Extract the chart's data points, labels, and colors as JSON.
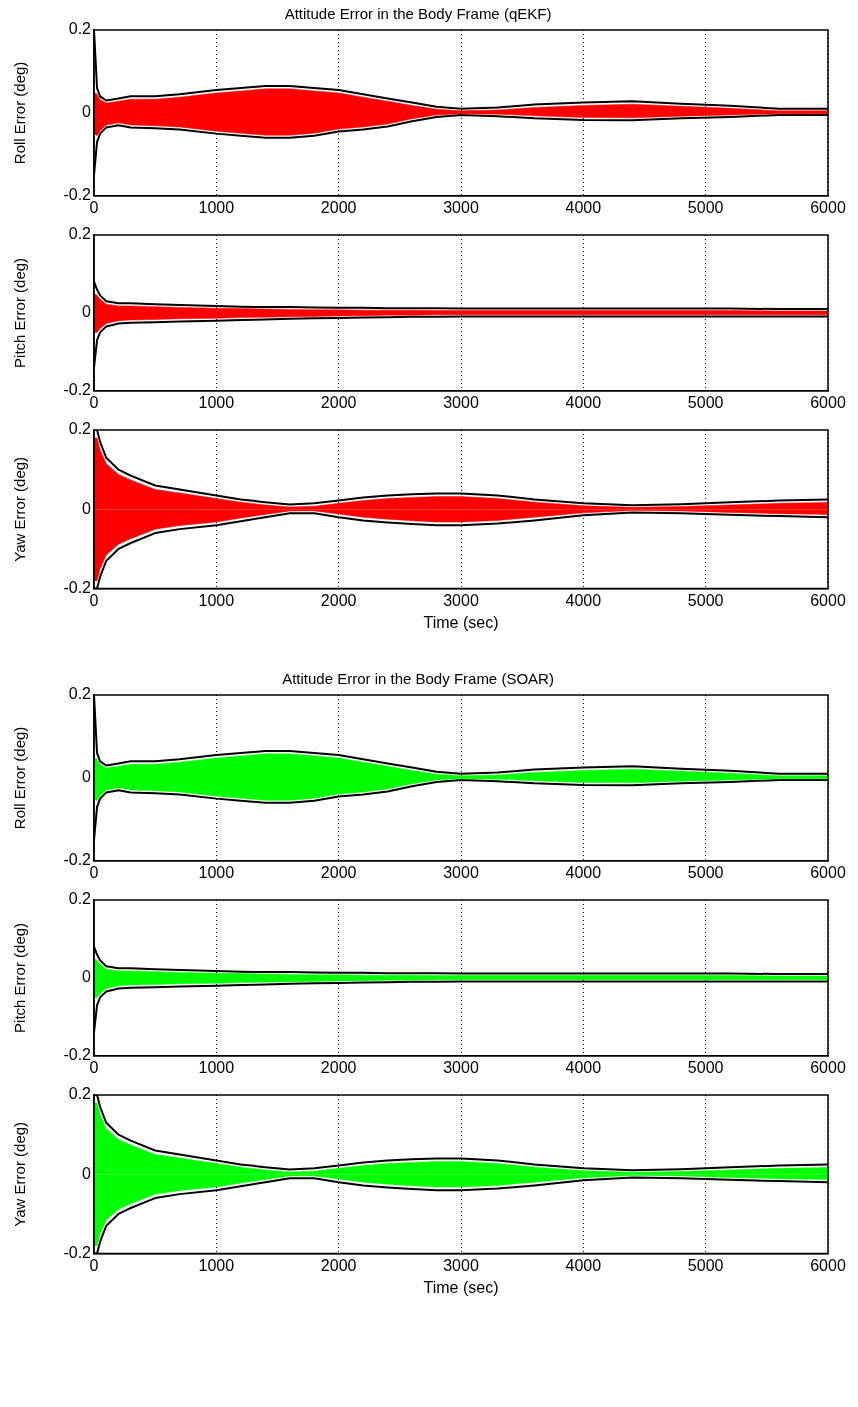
{
  "chart_data": [
    {
      "type": "area",
      "title": "Attitude Error in the Body Frame (qEKF)",
      "ylabel": "Roll Error (deg)",
      "x": [
        0,
        25,
        50,
        100,
        200,
        300,
        500,
        700,
        1000,
        1200,
        1400,
        1600,
        1800,
        2000,
        2200,
        2400,
        2600,
        2800,
        3000,
        3300,
        3600,
        4000,
        4400,
        4800,
        5200,
        5600,
        6000
      ],
      "xlim": [
        0,
        6000
      ],
      "xticks": [
        0,
        1000,
        2000,
        3000,
        4000,
        5000,
        6000
      ],
      "ylim": [
        -0.2,
        0.2
      ],
      "yticks": [
        -0.2,
        0,
        0.2
      ],
      "grid": "x",
      "legend": false,
      "marker": "none",
      "series": [
        {
          "color": "#ff0000",
          "values": [
            0.05,
            0.045,
            0.032,
            0.024,
            0.028,
            0.033,
            0.033,
            0.038,
            0.048,
            0.053,
            0.058,
            0.058,
            0.053,
            0.048,
            0.038,
            0.028,
            0.018,
            0.009,
            0.005,
            0.007,
            0.013,
            0.018,
            0.021,
            0.016,
            0.011,
            0.005,
            0.005
          ]
        },
        {
          "color": "#ff0000",
          "values": [
            -0.05,
            -0.055,
            -0.043,
            -0.029,
            -0.024,
            -0.029,
            -0.031,
            -0.034,
            -0.044,
            -0.049,
            -0.054,
            -0.054,
            -0.049,
            -0.039,
            -0.034,
            -0.027,
            -0.014,
            -0.005,
            -0.002,
            -0.003,
            -0.007,
            -0.011,
            -0.012,
            -0.008,
            -0.005,
            -0.002,
            -0.002
          ]
        },
        {
          "type": "line",
          "color": "#000000",
          "values": [
            0.2,
            0.06,
            0.04,
            0.03,
            0.035,
            0.04,
            0.04,
            0.045,
            0.055,
            0.06,
            0.065,
            0.065,
            0.06,
            0.055,
            0.045,
            0.035,
            0.025,
            0.015,
            0.01,
            0.013,
            0.02,
            0.025,
            0.028,
            0.022,
            0.017,
            0.01,
            0.01
          ]
        },
        {
          "type": "line",
          "color": "#000000",
          "values": [
            -0.15,
            -0.07,
            -0.05,
            -0.035,
            -0.03,
            -0.035,
            -0.037,
            -0.04,
            -0.05,
            -0.055,
            -0.06,
            -0.06,
            -0.055,
            -0.045,
            -0.04,
            -0.033,
            -0.02,
            -0.01,
            -0.005,
            -0.008,
            -0.013,
            -0.017,
            -0.018,
            -0.013,
            -0.01,
            -0.005,
            -0.005
          ]
        }
      ]
    },
    {
      "type": "area",
      "ylabel": "Pitch Error (deg)",
      "x": [
        0,
        25,
        50,
        100,
        200,
        300,
        500,
        700,
        1000,
        1200,
        1400,
        1600,
        1800,
        2000,
        2200,
        2400,
        2600,
        2800,
        3000,
        3300,
        3600,
        4000,
        4400,
        4800,
        5200,
        5600,
        6000
      ],
      "xlim": [
        0,
        6000
      ],
      "xticks": [
        0,
        1000,
        2000,
        3000,
        4000,
        5000,
        6000
      ],
      "ylim": [
        -0.2,
        0.2
      ],
      "yticks": [
        -0.2,
        0,
        0.2
      ],
      "grid": "x",
      "legend": false,
      "marker": "none",
      "series": [
        {
          "color": "#ff0000",
          "values": [
            0.05,
            0.045,
            0.035,
            0.022,
            0.018,
            0.018,
            0.016,
            0.014,
            0.012,
            0.011,
            0.01,
            0.009,
            0.008,
            0.008,
            0.007,
            0.007,
            0.007,
            0.006,
            0.006,
            0.006,
            0.006,
            0.006,
            0.006,
            0.006,
            0.006,
            0.005,
            0.005
          ]
        },
        {
          "color": "#ff0000",
          "values": [
            -0.05,
            -0.05,
            -0.04,
            -0.027,
            -0.02,
            -0.018,
            -0.017,
            -0.015,
            -0.014,
            -0.012,
            -0.011,
            -0.01,
            -0.009,
            -0.008,
            -0.007,
            -0.006,
            -0.006,
            -0.005,
            -0.005,
            -0.005,
            -0.005,
            -0.005,
            -0.005,
            -0.005,
            -0.005,
            -0.005,
            -0.005
          ]
        },
        {
          "type": "line",
          "color": "#000000",
          "values": [
            0.08,
            0.06,
            0.045,
            0.03,
            0.025,
            0.025,
            0.022,
            0.02,
            0.018,
            0.016,
            0.015,
            0.015,
            0.014,
            0.013,
            0.013,
            0.012,
            0.012,
            0.012,
            0.011,
            0.011,
            0.011,
            0.011,
            0.011,
            0.011,
            0.011,
            0.01,
            0.01
          ]
        },
        {
          "type": "line",
          "color": "#000000",
          "values": [
            -0.14,
            -0.07,
            -0.05,
            -0.035,
            -0.027,
            -0.025,
            -0.024,
            -0.022,
            -0.02,
            -0.018,
            -0.017,
            -0.015,
            -0.014,
            -0.013,
            -0.012,
            -0.011,
            -0.01,
            -0.01,
            -0.009,
            -0.009,
            -0.009,
            -0.009,
            -0.009,
            -0.009,
            -0.009,
            -0.009,
            -0.009
          ]
        }
      ]
    },
    {
      "type": "area",
      "ylabel": "Yaw Error (deg)",
      "xlabel": "Time (sec)",
      "x": [
        0,
        25,
        50,
        100,
        200,
        300,
        500,
        700,
        1000,
        1200,
        1400,
        1600,
        1800,
        2000,
        2200,
        2400,
        2600,
        2800,
        3000,
        3300,
        3600,
        4000,
        4400,
        4800,
        5200,
        5600,
        6000
      ],
      "xlim": [
        0,
        6000
      ],
      "xticks": [
        0,
        1000,
        2000,
        3000,
        4000,
        5000,
        6000
      ],
      "ylim": [
        -0.2,
        0.2
      ],
      "yticks": [
        -0.2,
        0,
        0.2
      ],
      "grid": "x",
      "legend": false,
      "marker": "none",
      "series": [
        {
          "color": "#ff0000",
          "values": [
            0.18,
            0.18,
            0.15,
            0.115,
            0.088,
            0.074,
            0.05,
            0.041,
            0.027,
            0.018,
            0.011,
            0.006,
            0.008,
            0.015,
            0.022,
            0.027,
            0.03,
            0.032,
            0.032,
            0.027,
            0.018,
            0.009,
            0.005,
            0.007,
            0.011,
            0.015,
            0.017
          ]
        },
        {
          "color": "#ff0000",
          "values": [
            -0.18,
            -0.18,
            -0.15,
            -0.115,
            -0.088,
            -0.074,
            -0.05,
            -0.041,
            -0.032,
            -0.022,
            -0.013,
            -0.004,
            -0.004,
            -0.012,
            -0.02,
            -0.025,
            -0.029,
            -0.032,
            -0.032,
            -0.028,
            -0.02,
            -0.009,
            -0.003,
            -0.004,
            -0.008,
            -0.011,
            -0.013
          ]
        },
        {
          "type": "line",
          "color": "#000000",
          "values": [
            0.2,
            0.2,
            0.17,
            0.13,
            0.1,
            0.085,
            0.06,
            0.05,
            0.035,
            0.025,
            0.018,
            0.012,
            0.015,
            0.022,
            0.03,
            0.035,
            0.038,
            0.04,
            0.04,
            0.035,
            0.025,
            0.015,
            0.01,
            0.013,
            0.018,
            0.022,
            0.025
          ]
        },
        {
          "type": "line",
          "color": "#000000",
          "values": [
            -0.2,
            -0.2,
            -0.17,
            -0.13,
            -0.1,
            -0.085,
            -0.06,
            -0.05,
            -0.04,
            -0.03,
            -0.02,
            -0.01,
            -0.01,
            -0.02,
            -0.028,
            -0.033,
            -0.037,
            -0.04,
            -0.04,
            -0.036,
            -0.028,
            -0.015,
            -0.008,
            -0.01,
            -0.014,
            -0.017,
            -0.02
          ]
        }
      ]
    },
    {
      "type": "area",
      "title": "Attitude Error in the Body Frame (SOAR)",
      "ylabel": "Roll Error (deg)",
      "x": [
        0,
        25,
        50,
        100,
        200,
        300,
        500,
        700,
        1000,
        1200,
        1400,
        1600,
        1800,
        2000,
        2200,
        2400,
        2600,
        2800,
        3000,
        3300,
        3600,
        4000,
        4400,
        4800,
        5200,
        5600,
        6000
      ],
      "xlim": [
        0,
        6000
      ],
      "xticks": [
        0,
        1000,
        2000,
        3000,
        4000,
        5000,
        6000
      ],
      "ylim": [
        -0.2,
        0.2
      ],
      "yticks": [
        -0.2,
        0,
        0.2
      ],
      "grid": "x",
      "legend": false,
      "marker": "none",
      "series": [
        {
          "color": "#00ff00",
          "values": [
            0.05,
            0.045,
            0.032,
            0.024,
            0.028,
            0.033,
            0.033,
            0.038,
            0.048,
            0.053,
            0.058,
            0.058,
            0.053,
            0.048,
            0.038,
            0.028,
            0.018,
            0.009,
            0.005,
            0.007,
            0.013,
            0.018,
            0.021,
            0.016,
            0.011,
            0.005,
            0.005
          ]
        },
        {
          "color": "#00ff00",
          "values": [
            -0.05,
            -0.055,
            -0.043,
            -0.029,
            -0.024,
            -0.029,
            -0.031,
            -0.034,
            -0.044,
            -0.049,
            -0.054,
            -0.054,
            -0.049,
            -0.039,
            -0.034,
            -0.027,
            -0.014,
            -0.005,
            -0.002,
            -0.003,
            -0.007,
            -0.011,
            -0.012,
            -0.008,
            -0.005,
            -0.002,
            -0.002
          ]
        },
        {
          "type": "line",
          "color": "#000000",
          "values": [
            0.2,
            0.06,
            0.04,
            0.03,
            0.035,
            0.04,
            0.04,
            0.045,
            0.055,
            0.06,
            0.065,
            0.065,
            0.06,
            0.055,
            0.045,
            0.035,
            0.025,
            0.015,
            0.01,
            0.013,
            0.02,
            0.025,
            0.028,
            0.022,
            0.017,
            0.01,
            0.01
          ]
        },
        {
          "type": "line",
          "color": "#000000",
          "values": [
            -0.15,
            -0.07,
            -0.05,
            -0.035,
            -0.03,
            -0.035,
            -0.037,
            -0.04,
            -0.05,
            -0.055,
            -0.06,
            -0.06,
            -0.055,
            -0.045,
            -0.04,
            -0.033,
            -0.02,
            -0.01,
            -0.005,
            -0.008,
            -0.013,
            -0.017,
            -0.018,
            -0.013,
            -0.01,
            -0.005,
            -0.005
          ]
        }
      ]
    },
    {
      "type": "area",
      "ylabel": "Pitch Error (deg)",
      "x": [
        0,
        25,
        50,
        100,
        200,
        300,
        500,
        700,
        1000,
        1200,
        1400,
        1600,
        1800,
        2000,
        2200,
        2400,
        2600,
        2800,
        3000,
        3300,
        3600,
        4000,
        4400,
        4800,
        5200,
        5600,
        6000
      ],
      "xlim": [
        0,
        6000
      ],
      "xticks": [
        0,
        1000,
        2000,
        3000,
        4000,
        5000,
        6000
      ],
      "ylim": [
        -0.2,
        0.2
      ],
      "yticks": [
        -0.2,
        0,
        0.2
      ],
      "grid": "x",
      "legend": false,
      "marker": "none",
      "series": [
        {
          "color": "#00ff00",
          "values": [
            0.05,
            0.045,
            0.035,
            0.022,
            0.018,
            0.018,
            0.016,
            0.014,
            0.012,
            0.011,
            0.01,
            0.009,
            0.008,
            0.008,
            0.007,
            0.007,
            0.007,
            0.006,
            0.006,
            0.006,
            0.006,
            0.006,
            0.006,
            0.006,
            0.006,
            0.005,
            0.005
          ]
        },
        {
          "color": "#00ff00",
          "values": [
            -0.05,
            -0.05,
            -0.04,
            -0.027,
            -0.02,
            -0.018,
            -0.017,
            -0.015,
            -0.014,
            -0.012,
            -0.011,
            -0.01,
            -0.009,
            -0.008,
            -0.007,
            -0.006,
            -0.006,
            -0.005,
            -0.005,
            -0.005,
            -0.005,
            -0.005,
            -0.005,
            -0.005,
            -0.005,
            -0.005,
            -0.005
          ]
        },
        {
          "type": "line",
          "color": "#000000",
          "values": [
            0.08,
            0.06,
            0.045,
            0.03,
            0.025,
            0.025,
            0.022,
            0.02,
            0.018,
            0.016,
            0.015,
            0.015,
            0.014,
            0.013,
            0.013,
            0.012,
            0.012,
            0.012,
            0.011,
            0.011,
            0.011,
            0.011,
            0.011,
            0.011,
            0.011,
            0.01,
            0.01
          ]
        },
        {
          "type": "line",
          "color": "#000000",
          "values": [
            -0.14,
            -0.07,
            -0.05,
            -0.035,
            -0.027,
            -0.025,
            -0.024,
            -0.022,
            -0.02,
            -0.018,
            -0.017,
            -0.015,
            -0.014,
            -0.013,
            -0.012,
            -0.011,
            -0.01,
            -0.01,
            -0.009,
            -0.009,
            -0.009,
            -0.009,
            -0.009,
            -0.009,
            -0.009,
            -0.009,
            -0.009
          ]
        }
      ]
    },
    {
      "type": "area",
      "ylabel": "Yaw Error (deg)",
      "xlabel": "Time (sec)",
      "x": [
        0,
        25,
        50,
        100,
        200,
        300,
        500,
        700,
        1000,
        1200,
        1400,
        1600,
        1800,
        2000,
        2200,
        2400,
        2600,
        2800,
        3000,
        3300,
        3600,
        4000,
        4400,
        4800,
        5200,
        5600,
        6000
      ],
      "xlim": [
        0,
        6000
      ],
      "xticks": [
        0,
        1000,
        2000,
        3000,
        4000,
        5000,
        6000
      ],
      "ylim": [
        -0.2,
        0.2
      ],
      "yticks": [
        -0.2,
        0,
        0.2
      ],
      "grid": "x",
      "legend": false,
      "marker": "none",
      "series": [
        {
          "color": "#00ff00",
          "values": [
            0.18,
            0.18,
            0.15,
            0.115,
            0.088,
            0.074,
            0.05,
            0.041,
            0.027,
            0.018,
            0.011,
            0.006,
            0.008,
            0.015,
            0.022,
            0.027,
            0.03,
            0.032,
            0.032,
            0.027,
            0.018,
            0.009,
            0.005,
            0.007,
            0.011,
            0.015,
            0.017
          ]
        },
        {
          "color": "#00ff00",
          "values": [
            -0.18,
            -0.18,
            -0.15,
            -0.115,
            -0.088,
            -0.074,
            -0.05,
            -0.041,
            -0.032,
            -0.022,
            -0.013,
            -0.004,
            -0.004,
            -0.012,
            -0.02,
            -0.025,
            -0.029,
            -0.032,
            -0.032,
            -0.028,
            -0.02,
            -0.009,
            -0.003,
            -0.004,
            -0.008,
            -0.011,
            -0.013
          ]
        },
        {
          "type": "line",
          "color": "#000000",
          "values": [
            0.2,
            0.2,
            0.17,
            0.13,
            0.1,
            0.085,
            0.06,
            0.05,
            0.035,
            0.025,
            0.018,
            0.012,
            0.015,
            0.022,
            0.03,
            0.035,
            0.038,
            0.04,
            0.04,
            0.035,
            0.025,
            0.015,
            0.01,
            0.013,
            0.018,
            0.022,
            0.025
          ]
        },
        {
          "type": "line",
          "color": "#000000",
          "values": [
            -0.2,
            -0.2,
            -0.17,
            -0.13,
            -0.1,
            -0.085,
            -0.06,
            -0.05,
            -0.04,
            -0.03,
            -0.02,
            -0.01,
            -0.01,
            -0.02,
            -0.028,
            -0.033,
            -0.037,
            -0.04,
            -0.04,
            -0.036,
            -0.028,
            -0.015,
            -0.008,
            -0.01,
            -0.014,
            -0.017,
            -0.02
          ]
        }
      ]
    }
  ]
}
